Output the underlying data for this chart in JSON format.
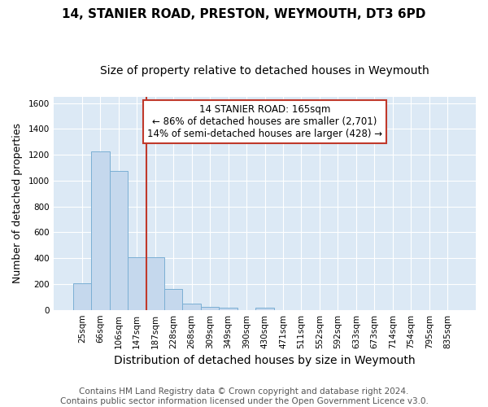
{
  "title": "14, STANIER ROAD, PRESTON, WEYMOUTH, DT3 6PD",
  "subtitle": "Size of property relative to detached houses in Weymouth",
  "xlabel": "Distribution of detached houses by size in Weymouth",
  "ylabel": "Number of detached properties",
  "categories": [
    "25sqm",
    "66sqm",
    "106sqm",
    "147sqm",
    "187sqm",
    "228sqm",
    "268sqm",
    "309sqm",
    "349sqm",
    "390sqm",
    "430sqm",
    "471sqm",
    "511sqm",
    "552sqm",
    "592sqm",
    "633sqm",
    "673sqm",
    "714sqm",
    "754sqm",
    "795sqm",
    "835sqm"
  ],
  "values": [
    205,
    1225,
    1075,
    410,
    410,
    160,
    50,
    25,
    20,
    0,
    20,
    0,
    0,
    0,
    0,
    0,
    0,
    0,
    0,
    0,
    0
  ],
  "bar_color": "#c5d8ed",
  "bar_edge_color": "#7bafd4",
  "vline_color": "#c0392b",
  "annotation_text": "14 STANIER ROAD: 165sqm\n← 86% of detached houses are smaller (2,701)\n14% of semi-detached houses are larger (428) →",
  "annotation_box_color": "white",
  "annotation_box_edge_color": "#c0392b",
  "ylim": [
    0,
    1650
  ],
  "yticks": [
    0,
    200,
    400,
    600,
    800,
    1000,
    1200,
    1400,
    1600
  ],
  "footer": "Contains HM Land Registry data © Crown copyright and database right 2024.\nContains public sector information licensed under the Open Government Licence v3.0.",
  "fig_bg_color": "#ffffff",
  "plot_bg_color": "#dce9f5",
  "title_fontsize": 11,
  "subtitle_fontsize": 10,
  "xlabel_fontsize": 10,
  "ylabel_fontsize": 9,
  "tick_fontsize": 7.5,
  "footer_fontsize": 7.5,
  "vline_x": 3.5
}
